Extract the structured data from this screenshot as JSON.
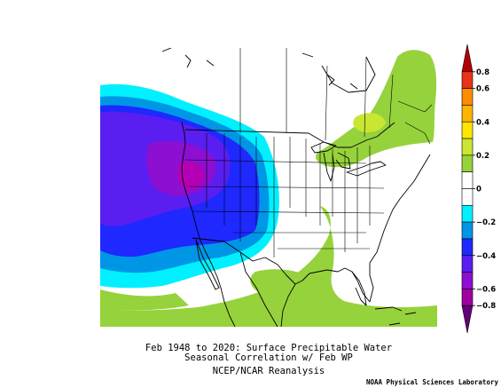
{
  "figure": {
    "caption_line1": "Feb 1948 to 2020: Surface Precipitable Water",
    "caption_line2": "Seasonal Correlation w/ Feb WP",
    "caption_line3": "NCEP/NCAR Reanalysis",
    "credit": "NOAA Physical Sciences Laboratory"
  },
  "colorbar": {
    "ticks": [
      "0.8",
      "0.6",
      "0.4",
      "0.2",
      "0",
      "−0.2",
      "−0.4",
      "−0.6",
      "−0.8"
    ],
    "segments": [
      {
        "range": [
          0.7,
          0.8
        ],
        "color": "#b30000"
      },
      {
        "range": [
          0.6,
          0.7
        ],
        "color": "#e8341a"
      },
      {
        "range": [
          0.5,
          0.6
        ],
        "color": "#ff8c00"
      },
      {
        "range": [
          0.4,
          0.5
        ],
        "color": "#ffb400"
      },
      {
        "range": [
          0.3,
          0.4
        ],
        "color": "#ffe600"
      },
      {
        "range": [
          0.2,
          0.3
        ],
        "color": "#c8e632"
      },
      {
        "range": [
          0.1,
          0.2
        ],
        "color": "#96d23c"
      },
      {
        "range": [
          0.0,
          0.1
        ],
        "color": "#ffffff"
      },
      {
        "range": [
          -0.1,
          0.0
        ],
        "color": "#ffffff"
      },
      {
        "range": [
          -0.2,
          -0.1
        ],
        "color": "#00f0ff"
      },
      {
        "range": [
          -0.3,
          -0.2
        ],
        "color": "#0096e6"
      },
      {
        "range": [
          -0.4,
          -0.3
        ],
        "color": "#1e28ff"
      },
      {
        "range": [
          -0.5,
          -0.4
        ],
        "color": "#5a1ef0"
      },
      {
        "range": [
          -0.6,
          -0.5
        ],
        "color": "#8c0fd2"
      },
      {
        "range": [
          -0.7,
          -0.6
        ],
        "color": "#a000a0"
      },
      {
        "range": [
          -0.8,
          -0.7
        ],
        "color": "#640078"
      }
    ]
  },
  "map": {
    "colors": {
      "cyan": "#00f0ff",
      "blue_light": "#0096e6",
      "blue": "#1e28ff",
      "violet": "#5a1ef0",
      "purple": "#8c0fd2",
      "magenta": "#b400b4",
      "green": "#96d23c",
      "lime": "#c8e632",
      "boundary": "#000000"
    }
  }
}
